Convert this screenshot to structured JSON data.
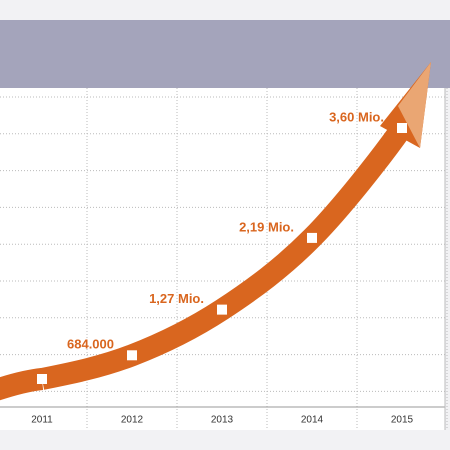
{
  "chart_data": {
    "type": "line",
    "categories": [
      "2011",
      "2012",
      "2013",
      "2014",
      "2015"
    ],
    "values": [
      380000,
      684000,
      1270000,
      2190000,
      3600000
    ],
    "value_labels": [
      null,
      "684.000",
      "1,27 Mio.",
      "2,19 Mio.",
      "3,60 Mio."
    ],
    "color": "#d9661f"
  }
}
